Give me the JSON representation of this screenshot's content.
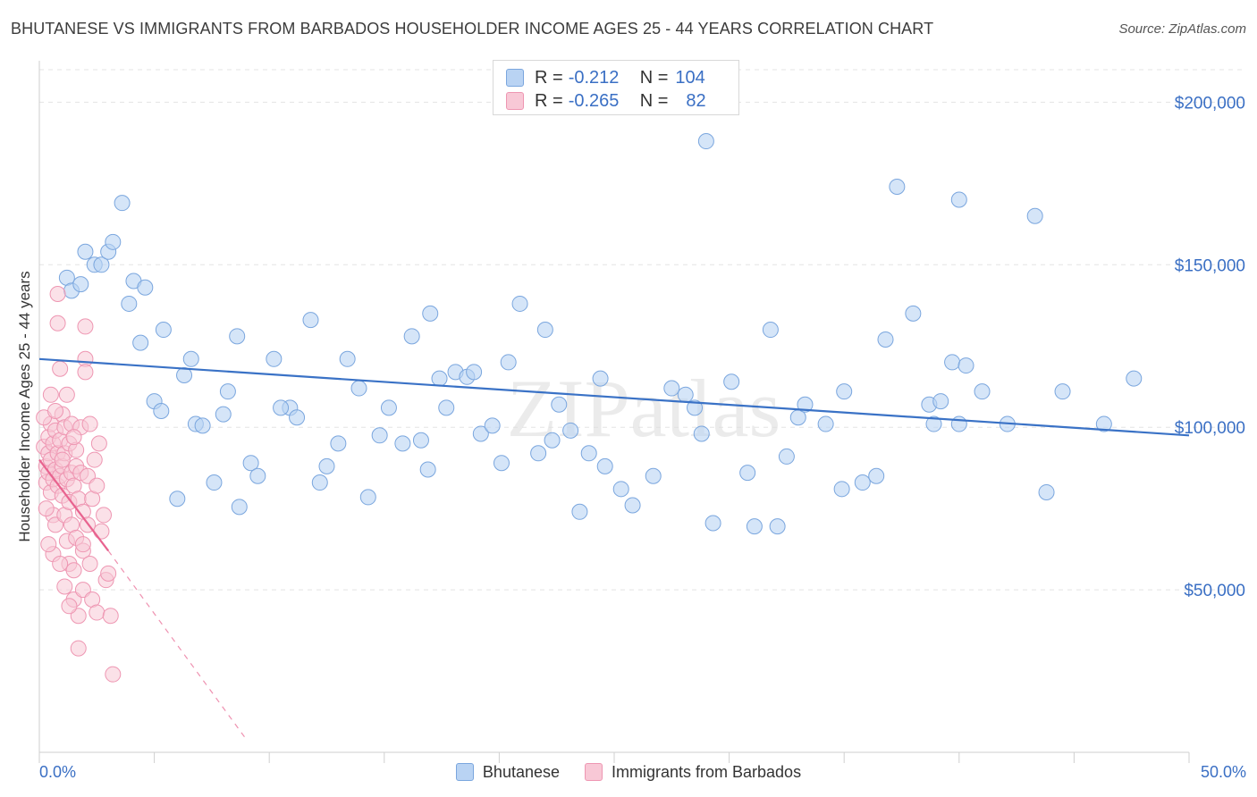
{
  "title": "BHUTANESE VS IMMIGRANTS FROM BARBADOS HOUSEHOLDER INCOME AGES 25 - 44 YEARS CORRELATION CHART",
  "source": "Source: ZipAtlas.com",
  "watermark": "ZIPatlas",
  "legend_top": [
    {
      "r_label": "R = ",
      "r_value": "-0.212",
      "n_label": "N = ",
      "n_value": "104"
    },
    {
      "r_label": "R = ",
      "r_value": "-0.265",
      "n_label": "N = ",
      "n_value": "82"
    }
  ],
  "colors": {
    "blue_fill": "#b9d3f3",
    "blue_stroke": "#7aa6de",
    "blue_line": "#3a72c6",
    "pink_fill": "#f8c8d6",
    "pink_stroke": "#ee96b2",
    "pink_line": "#e8638f",
    "axis_label": "#3a6fc4",
    "grid": "#e3e3e3"
  },
  "chart_data": {
    "type": "scatter",
    "xlabel": "",
    "ylabel": "Householder Income Ages 25 - 44 years",
    "xlim": [
      0,
      50
    ],
    "ylim": [
      0,
      210000
    ],
    "x_ticks_labels": [
      "0.0%",
      "50.0%"
    ],
    "y_ticks": [
      {
        "value": 50000,
        "label": "$50,000"
      },
      {
        "value": 100000,
        "label": "$100,000"
      },
      {
        "value": 150000,
        "label": "$150,000"
      },
      {
        "value": 200000,
        "label": "$200,000"
      }
    ],
    "grid": true,
    "legend_placement": "bottom-center",
    "series": [
      {
        "name": "Bhutanese",
        "color": "#b9d3f3",
        "trend": {
          "x0": 0,
          "y0": 121000,
          "x1": 50,
          "y1": 97500
        },
        "points": [
          [
            1.2,
            146000
          ],
          [
            1.4,
            142000
          ],
          [
            1.8,
            144000
          ],
          [
            2.0,
            154000
          ],
          [
            2.4,
            150000
          ],
          [
            2.7,
            150000
          ],
          [
            3.0,
            154000
          ],
          [
            3.2,
            157000
          ],
          [
            3.6,
            169000
          ],
          [
            3.9,
            138000
          ],
          [
            4.1,
            145000
          ],
          [
            4.6,
            143000
          ],
          [
            4.4,
            126000
          ],
          [
            5.4,
            130000
          ],
          [
            5.0,
            108000
          ],
          [
            5.3,
            105000
          ],
          [
            6.0,
            78000
          ],
          [
            6.3,
            116000
          ],
          [
            6.8,
            101000
          ],
          [
            7.1,
            100500
          ],
          [
            7.6,
            83000
          ],
          [
            8.2,
            111000
          ],
          [
            8.7,
            75500
          ],
          [
            9.2,
            89000
          ],
          [
            9.5,
            85000
          ],
          [
            10.2,
            121000
          ],
          [
            10.9,
            106000
          ],
          [
            11.2,
            103000
          ],
          [
            11.8,
            133000
          ],
          [
            12.2,
            83000
          ],
          [
            12.5,
            88000
          ],
          [
            13.0,
            95000
          ],
          [
            13.4,
            121000
          ],
          [
            13.9,
            112000
          ],
          [
            14.3,
            78500
          ],
          [
            14.8,
            97500
          ],
          [
            15.2,
            106000
          ],
          [
            15.8,
            95000
          ],
          [
            16.6,
            96000
          ],
          [
            16.9,
            87000
          ],
          [
            16.2,
            128000
          ],
          [
            17.0,
            135000
          ],
          [
            17.4,
            115000
          ],
          [
            17.7,
            106000
          ],
          [
            18.1,
            117000
          ],
          [
            18.6,
            115500
          ],
          [
            18.9,
            117000
          ],
          [
            19.2,
            98000
          ],
          [
            19.7,
            100500
          ],
          [
            20.1,
            89000
          ],
          [
            20.4,
            120000
          ],
          [
            20.9,
            138000
          ],
          [
            21.7,
            92000
          ],
          [
            22.0,
            130000
          ],
          [
            22.3,
            96000
          ],
          [
            22.6,
            107000
          ],
          [
            23.1,
            99000
          ],
          [
            23.9,
            92000
          ],
          [
            24.4,
            115000
          ],
          [
            24.6,
            88000
          ],
          [
            25.3,
            81000
          ],
          [
            25.8,
            76000
          ],
          [
            26.7,
            85000
          ],
          [
            27.5,
            112000
          ],
          [
            28.1,
            110000
          ],
          [
            28.5,
            106000
          ],
          [
            28.8,
            98000
          ],
          [
            29.3,
            70500
          ],
          [
            29.0,
            188000
          ],
          [
            30.1,
            114000
          ],
          [
            30.8,
            86000
          ],
          [
            31.1,
            69500
          ],
          [
            31.8,
            130000
          ],
          [
            32.1,
            69500
          ],
          [
            32.5,
            91000
          ],
          [
            33.0,
            103000
          ],
          [
            33.3,
            107000
          ],
          [
            34.2,
            101000
          ],
          [
            34.9,
            81000
          ],
          [
            35.0,
            111000
          ],
          [
            35.8,
            83000
          ],
          [
            36.4,
            85000
          ],
          [
            36.8,
            127000
          ],
          [
            37.3,
            174000
          ],
          [
            38.0,
            135000
          ],
          [
            38.7,
            107000
          ],
          [
            38.9,
            101000
          ],
          [
            39.2,
            108000
          ],
          [
            39.7,
            120000
          ],
          [
            40.0,
            101000
          ],
          [
            40.3,
            119000
          ],
          [
            40.0,
            170000
          ],
          [
            41.0,
            111000
          ],
          [
            42.1,
            101000
          ],
          [
            43.3,
            165000
          ],
          [
            43.8,
            80000
          ],
          [
            44.5,
            111000
          ],
          [
            46.3,
            101000
          ],
          [
            47.6,
            115000
          ],
          [
            8.6,
            128000
          ],
          [
            10.5,
            106000
          ],
          [
            6.6,
            121000
          ],
          [
            8.0,
            104000
          ],
          [
            23.5,
            74000
          ]
        ]
      },
      {
        "name": "Immigrants from Barbados",
        "color": "#f8c8d6",
        "trend": {
          "x0": 0,
          "y0": 90000,
          "x1": 3.0,
          "y1": 62000,
          "dash_x1": 9.0,
          "dash_y1": 4000
        },
        "points": [
          [
            0.2,
            94000
          ],
          [
            0.3,
            88000
          ],
          [
            0.3,
            83000
          ],
          [
            0.4,
            97000
          ],
          [
            0.4,
            92000
          ],
          [
            0.4,
            86000
          ],
          [
            0.5,
            80000
          ],
          [
            0.5,
            101000
          ],
          [
            0.5,
            90000
          ],
          [
            0.6,
            84000
          ],
          [
            0.6,
            95000
          ],
          [
            0.6,
            73000
          ],
          [
            0.7,
            87000
          ],
          [
            0.7,
            99000
          ],
          [
            0.7,
            70000
          ],
          [
            0.8,
            92000
          ],
          [
            0.8,
            82000
          ],
          [
            0.8,
            141000
          ],
          [
            0.8,
            132000
          ],
          [
            0.9,
            85000
          ],
          [
            0.9,
            96000
          ],
          [
            0.9,
            118000
          ],
          [
            1.0,
            104000
          ],
          [
            1.0,
            88000
          ],
          [
            1.0,
            79000
          ],
          [
            1.1,
            92000
          ],
          [
            1.1,
            100000
          ],
          [
            1.1,
            73000
          ],
          [
            1.2,
            110000
          ],
          [
            1.2,
            84000
          ],
          [
            1.2,
            65000
          ],
          [
            1.3,
            95000
          ],
          [
            1.3,
            77000
          ],
          [
            1.3,
            58000
          ],
          [
            1.4,
            86000
          ],
          [
            1.4,
            101000
          ],
          [
            1.4,
            70000
          ],
          [
            1.5,
            82000
          ],
          [
            1.5,
            56000
          ],
          [
            1.5,
            47000
          ],
          [
            1.6,
            88000
          ],
          [
            1.6,
            93000
          ],
          [
            1.6,
            66000
          ],
          [
            1.7,
            78000
          ],
          [
            1.7,
            42000
          ],
          [
            1.7,
            32000
          ],
          [
            1.8,
            100000
          ],
          [
            1.8,
            86000
          ],
          [
            1.9,
            74000
          ],
          [
            1.9,
            62000
          ],
          [
            1.9,
            50000
          ],
          [
            2.0,
            131000
          ],
          [
            2.0,
            121000
          ],
          [
            2.0,
            117000
          ],
          [
            2.1,
            85000
          ],
          [
            2.1,
            70000
          ],
          [
            2.2,
            101000
          ],
          [
            2.2,
            58000
          ],
          [
            2.3,
            78000
          ],
          [
            2.3,
            47000
          ],
          [
            2.5,
            82000
          ],
          [
            2.5,
            43000
          ],
          [
            2.6,
            95000
          ],
          [
            2.7,
            68000
          ],
          [
            2.8,
            73000
          ],
          [
            2.9,
            53000
          ],
          [
            3.0,
            55000
          ],
          [
            3.1,
            42000
          ],
          [
            3.2,
            24000
          ],
          [
            0.3,
            75000
          ],
          [
            0.2,
            103000
          ],
          [
            0.6,
            61000
          ],
          [
            0.9,
            58000
          ],
          [
            1.1,
            51000
          ],
          [
            1.3,
            45000
          ],
          [
            1.0,
            90000
          ],
          [
            0.5,
            110000
          ],
          [
            0.7,
            105000
          ],
          [
            1.9,
            64000
          ],
          [
            2.4,
            90000
          ],
          [
            1.5,
            97000
          ],
          [
            0.4,
            64000
          ]
        ]
      }
    ]
  },
  "legend_bottom": [
    "Bhutanese",
    "Immigrants from Barbados"
  ]
}
